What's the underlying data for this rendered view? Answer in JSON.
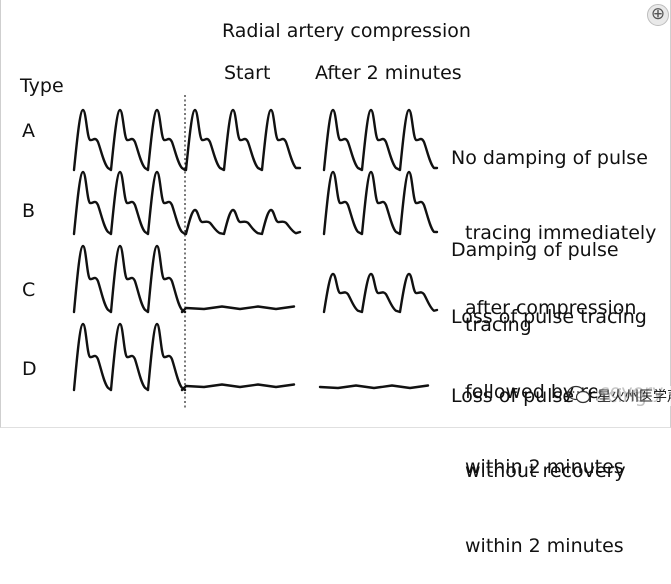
{
  "title": "Radial artery compression",
  "columns": {
    "start": "Start",
    "after": "After 2 minutes"
  },
  "type_header": "Type",
  "rows": [
    {
      "label": "A",
      "description": [
        "No damping of pulse",
        "tracing immediately",
        "after compression"
      ]
    },
    {
      "label": "B",
      "description": [
        "Damping of pulse",
        "tracing"
      ]
    },
    {
      "label": "C",
      "description": [
        "Loss of pulse tracing",
        "followed by recovery",
        "within 2 minutes"
      ]
    },
    {
      "label": "D",
      "description": [
        "Loss of pulse tracing",
        "without recovery",
        "within 2 minutes"
      ]
    }
  ],
  "watermark": "星火州医学声",
  "icons": {
    "zoom": "zoom-in-icon"
  }
}
